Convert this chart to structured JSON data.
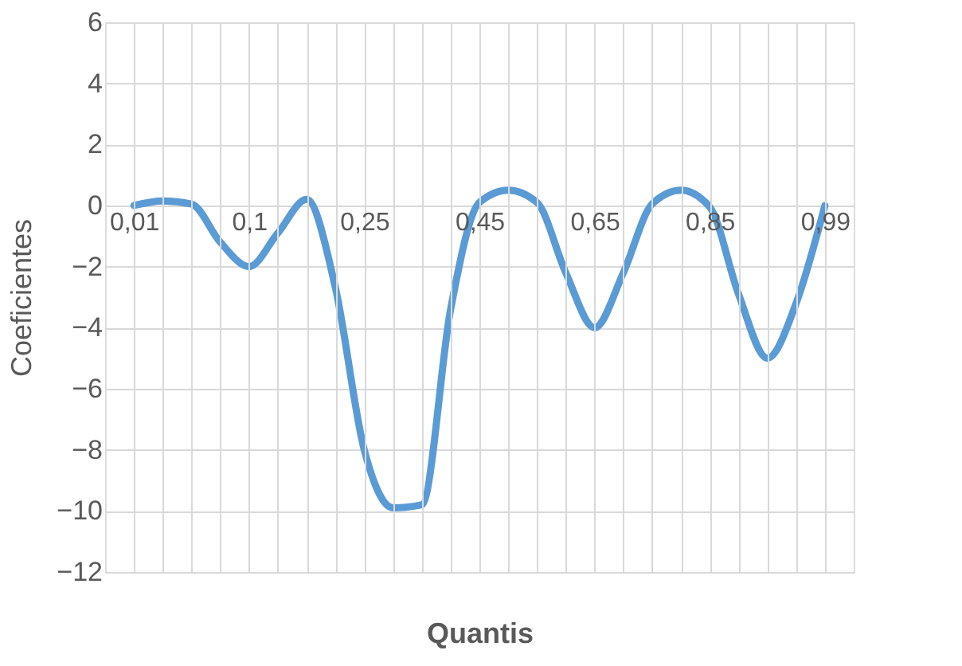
{
  "chart_data": {
    "type": "line",
    "xlabel": "Quantis",
    "ylabel": "Coeficientes",
    "categories": [
      "0,01",
      null,
      null,
      null,
      "0,1",
      null,
      null,
      null,
      "0,25",
      null,
      null,
      null,
      "0,45",
      null,
      null,
      null,
      "0,65",
      null,
      null,
      null,
      "0,85",
      null,
      null,
      null,
      "0,99"
    ],
    "series": [
      {
        "color": "#5b9bd5",
        "values": [
          0,
          0.15,
          0.05,
          -1.2,
          -2.0,
          -0.9,
          0.2,
          -2.7,
          -8.0,
          -9.9,
          -9.8,
          -3.4,
          0.1,
          0.5,
          0.1,
          -2.2,
          -4.0,
          -2.2,
          0.05,
          0.5,
          -0.05,
          -2.9,
          -5.0,
          -3.2,
          0
        ]
      }
    ],
    "ylim": [
      -12,
      6
    ],
    "yticks": [
      -12,
      -10,
      -8,
      -6,
      -4,
      -2,
      0,
      2,
      4,
      6
    ],
    "grid": true,
    "marker": "none",
    "line_style": "solid"
  }
}
